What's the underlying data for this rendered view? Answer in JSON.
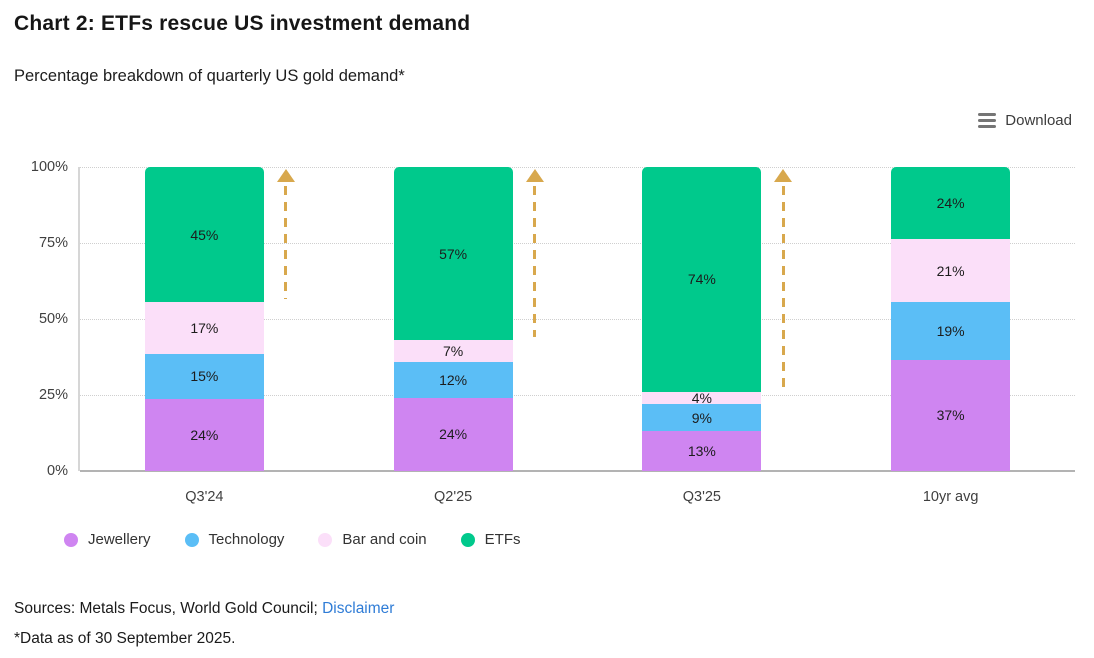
{
  "header": {
    "title": "Chart 2: ETFs rescue US investment demand",
    "subtitle": "Percentage breakdown of quarterly US gold demand*"
  },
  "toolbar": {
    "download_label": "Download",
    "download_icon": "hamburger-menu-icon"
  },
  "chart_data": {
    "type": "bar",
    "stacked": true,
    "title": "Chart 2: ETFs rescue US investment demand",
    "subtitle": "Percentage breakdown of quarterly US gold demand*",
    "categories": [
      "Q3'24",
      "Q2'25",
      "Q3'25",
      "10yr avg"
    ],
    "series": [
      {
        "name": "Jewellery",
        "color": "#cf85f1",
        "values": [
          24,
          24,
          13,
          37
        ]
      },
      {
        "name": "Technology",
        "color": "#5bbef6",
        "values": [
          15,
          12,
          9,
          19
        ]
      },
      {
        "name": "Bar and coin",
        "color": "#fbdff9",
        "values": [
          17,
          7,
          4,
          21
        ]
      },
      {
        "name": "ETFs",
        "color": "#00c98c",
        "values": [
          45,
          57,
          74,
          24
        ]
      }
    ],
    "value_suffix": "%",
    "yticks": [
      0,
      25,
      50,
      75,
      100
    ],
    "ytick_labels": [
      "0%",
      "25%",
      "50%",
      "75%",
      "100%"
    ],
    "ylim": [
      0,
      100
    ],
    "grid": "dotted horizontal",
    "legend_position": "bottom-left",
    "annotation_arrows": {
      "bar_indices": [
        0,
        1,
        2
      ],
      "color": "#d8a84d",
      "style": "dashed vertical arrow pointing up, spanning the ETFs segment"
    }
  },
  "legend": {
    "items": [
      {
        "label": "Jewellery",
        "color": "#cf85f1"
      },
      {
        "label": "Technology",
        "color": "#5bbef6"
      },
      {
        "label": "Bar and coin",
        "color": "#fbdff9"
      },
      {
        "label": "ETFs",
        "color": "#00c98c"
      }
    ]
  },
  "footer": {
    "sources_text": "Sources: Metals Focus, World Gold Council; ",
    "disclaimer_label": "Disclaimer",
    "footnote": "*Data as of 30 September 2025."
  }
}
